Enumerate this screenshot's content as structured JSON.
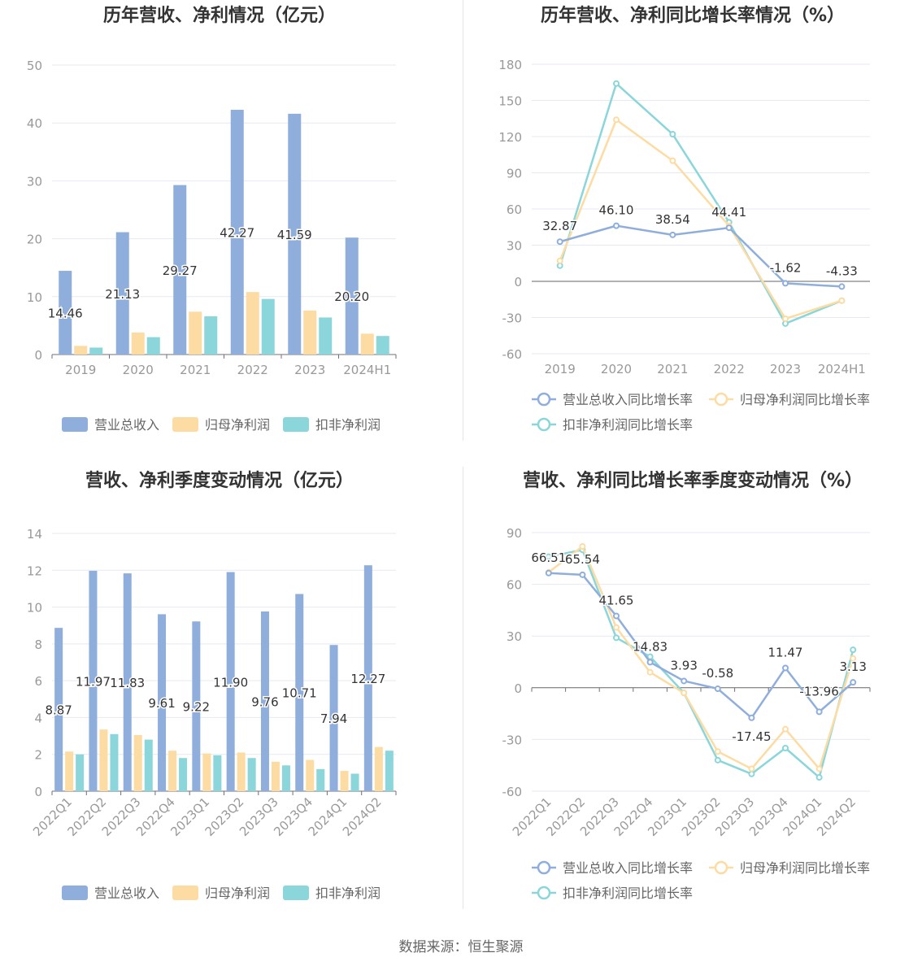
{
  "colors": {
    "revenue": "#8faedc",
    "net_profit": "#fddca3",
    "deducted_profit": "#8ad6da",
    "title": "#333333",
    "axis_text": "#999999",
    "grid": "#e6e9f0",
    "label": "#333333"
  },
  "source": "数据来源：恒生聚源",
  "chart_data": [
    {
      "id": "annual_values",
      "type": "bar",
      "title": "历年营收、净利情况（亿元）",
      "categories": [
        "2019",
        "2020",
        "2021",
        "2022",
        "2023",
        "2024H1"
      ],
      "ylim": [
        0,
        50
      ],
      "yticks": [
        0,
        10,
        20,
        30,
        40,
        50
      ],
      "series": [
        {
          "name": "营业总收入",
          "values": [
            14.46,
            21.13,
            29.27,
            42.27,
            41.59,
            20.2
          ],
          "labels": [
            "14.46",
            "21.13",
            "29.27",
            "42.27",
            "41.59",
            "20.20"
          ]
        },
        {
          "name": "归母净利润",
          "values": [
            1.5,
            3.8,
            7.4,
            10.8,
            7.6,
            3.6
          ]
        },
        {
          "name": "扣非净利润",
          "values": [
            1.2,
            3.0,
            6.6,
            9.6,
            6.4,
            3.2
          ]
        }
      ],
      "legend": "bottom"
    },
    {
      "id": "annual_growth",
      "type": "line",
      "title": "历年营收、净利同比增长率情况（%）",
      "categories": [
        "2019",
        "2020",
        "2021",
        "2022",
        "2023",
        "2024H1"
      ],
      "ylim": [
        -60,
        180
      ],
      "yticks": [
        -60,
        -30,
        0,
        30,
        60,
        90,
        120,
        150,
        180
      ],
      "series": [
        {
          "name": "营业总收入同比增长率",
          "values": [
            32.87,
            46.1,
            38.54,
            44.41,
            -1.62,
            -4.33
          ],
          "labels": [
            "32.87",
            "46.10",
            "38.54",
            "44.41",
            "-1.62",
            "-4.33"
          ]
        },
        {
          "name": "归母净利润同比增长率",
          "values": [
            17,
            134,
            100,
            46,
            -31,
            -16
          ]
        },
        {
          "name": "扣非净利润同比增长率",
          "values": [
            13,
            164,
            122,
            49,
            -35,
            -16
          ]
        }
      ],
      "legend": "bottom"
    },
    {
      "id": "quarterly_values",
      "type": "bar",
      "title": "营收、净利季度变动情况（亿元）",
      "categories": [
        "2022Q1",
        "2022Q2",
        "2022Q3",
        "2022Q4",
        "2023Q1",
        "2023Q2",
        "2023Q3",
        "2023Q4",
        "2024Q1",
        "2024Q2"
      ],
      "ylim": [
        0,
        14
      ],
      "yticks": [
        0,
        2,
        4,
        6,
        8,
        10,
        12,
        14
      ],
      "series": [
        {
          "name": "营业总收入",
          "values": [
            8.87,
            11.97,
            11.83,
            9.61,
            9.22,
            11.9,
            9.76,
            10.71,
            7.94,
            12.27
          ],
          "labels": [
            "8.87",
            "11.97",
            "11.83",
            "9.61",
            "9.22",
            "11.90",
            "9.76",
            "10.71",
            "7.94",
            "12.27"
          ]
        },
        {
          "name": "归母净利润",
          "values": [
            2.15,
            3.35,
            3.05,
            2.2,
            2.05,
            2.1,
            1.6,
            1.7,
            1.1,
            2.4
          ]
        },
        {
          "name": "扣非净利润",
          "values": [
            2.0,
            3.1,
            2.8,
            1.8,
            1.95,
            1.8,
            1.4,
            1.2,
            0.95,
            2.2
          ]
        }
      ],
      "legend": "bottom"
    },
    {
      "id": "quarterly_growth",
      "type": "line",
      "title": "营收、净利同比增长率季度变动情况（%）",
      "categories": [
        "2022Q1",
        "2022Q2",
        "2022Q3",
        "2022Q4",
        "2023Q1",
        "2023Q2",
        "2023Q3",
        "2023Q4",
        "2024Q1",
        "2024Q2"
      ],
      "ylim": [
        -60,
        90
      ],
      "yticks": [
        -60,
        -30,
        0,
        30,
        60,
        90
      ],
      "series": [
        {
          "name": "营业总收入同比增长率",
          "values": [
            66.51,
            65.54,
            41.65,
            14.83,
            3.93,
            -0.58,
            -17.45,
            11.47,
            -13.96,
            3.13
          ],
          "labels": [
            "66.51",
            "65.54",
            "41.65",
            "14.83",
            "3.93",
            "-0.58",
            "-17.45",
            "11.47",
            "-13.96",
            "3.13"
          ]
        },
        {
          "name": "归母净利润同比增长率",
          "values": [
            67,
            82,
            35,
            9,
            -3,
            -37,
            -47,
            -24,
            -47,
            17
          ]
        },
        {
          "name": "扣非净利润同比增长率",
          "values": [
            76,
            80,
            29,
            18,
            -3,
            -42,
            -50,
            -35,
            -52,
            22
          ]
        }
      ],
      "legend": "bottom"
    }
  ]
}
